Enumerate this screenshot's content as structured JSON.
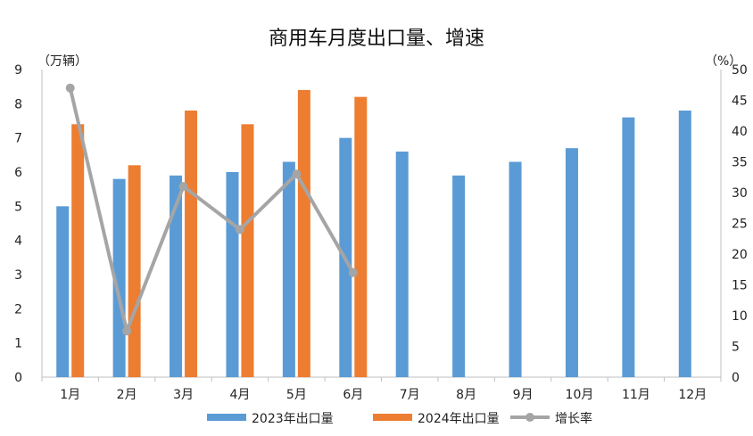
{
  "chart_data": {
    "type": "bar",
    "title": "商用车月度出口量、增速",
    "left_unit_label": "（万辆）",
    "right_unit_label": "（%）",
    "categories": [
      "1月",
      "2月",
      "3月",
      "4月",
      "5月",
      "6月",
      "7月",
      "8月",
      "9月",
      "10月",
      "11月",
      "12月"
    ],
    "y_left": {
      "min": 0,
      "max": 9,
      "ticks": [
        "0",
        "1",
        "2",
        "3",
        "4",
        "5",
        "6",
        "7",
        "8",
        "9"
      ]
    },
    "y_right": {
      "min": 0,
      "max": 50,
      "ticks": [
        "0",
        "5",
        "10",
        "15",
        "20",
        "25",
        "30",
        "35",
        "40",
        "45",
        "50"
      ]
    },
    "series": [
      {
        "name": "2023年出口量",
        "type": "bar",
        "axis": "left",
        "color": "#5B9BD5",
        "values": [
          5.0,
          5.8,
          5.9,
          6.0,
          6.3,
          7.0,
          6.6,
          5.9,
          6.3,
          6.7,
          7.6,
          7.8
        ]
      },
      {
        "name": "2024年出口量",
        "type": "bar",
        "axis": "left",
        "color": "#ED7D31",
        "values": [
          7.4,
          6.2,
          7.8,
          7.4,
          8.4,
          8.2,
          null,
          null,
          null,
          null,
          null,
          null
        ]
      },
      {
        "name": "增长率",
        "type": "line",
        "axis": "right",
        "color": "#A5A5A5",
        "values": [
          47,
          7.5,
          31,
          24,
          33,
          17,
          null,
          null,
          null,
          null,
          null,
          null
        ]
      }
    ],
    "legend_position": "bottom",
    "grid": false
  }
}
